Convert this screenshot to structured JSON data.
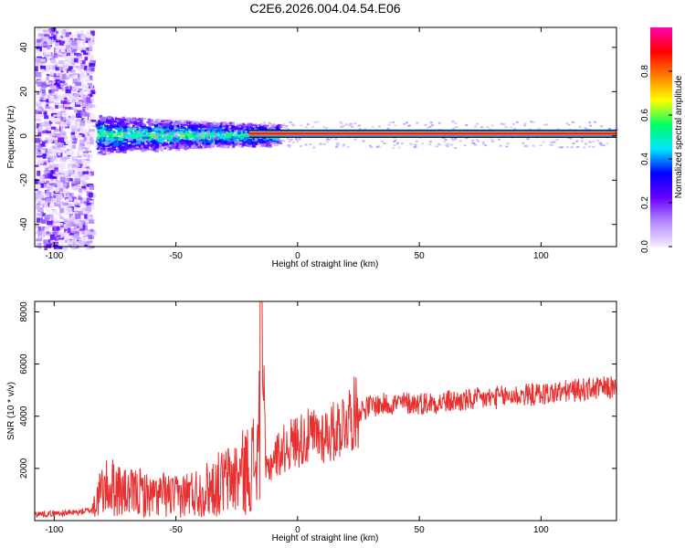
{
  "title": "C2E6.2026.004.04.54.E06",
  "chart_data": [
    {
      "type": "heatmap",
      "xlabel": "Height of straight line (km)",
      "ylabel": "Frequency (Hz)",
      "xlim": [
        -108,
        131
      ],
      "ylim": [
        -50,
        49
      ],
      "xticks": [
        -100,
        -50,
        0,
        50,
        100
      ],
      "yticks": [
        -40,
        -20,
        0,
        20,
        40
      ],
      "colorbar": {
        "label": "Normalized spectral amplitude",
        "range": [
          0,
          1
        ],
        "ticks": [
          0.0,
          0.2,
          0.4,
          0.6,
          0.8
        ],
        "tick_labels": [
          "0.0",
          "0.2",
          "0.4",
          "0.6",
          "0.8"
        ],
        "colors": [
          "#f2eaff",
          "#b48cff",
          "#6a00ff",
          "#0000ff",
          "#00e5ff",
          "#00ff66",
          "#ffff00",
          "#ff7f00",
          "#ff0000",
          "#ff00b0"
        ]
      },
      "features": {
        "noise_region_x": [
          -108,
          -85
        ],
        "signal_center_freq_hz": 1,
        "stable_line_from_x": -20
      }
    },
    {
      "type": "line",
      "xlabel": "Height of straight line (km)",
      "ylabel": "SNR (10 * v/v)",
      "xlim": [
        -108,
        131
      ],
      "ylim": [
        0,
        8400
      ],
      "xticks": [
        -100,
        -50,
        0,
        50,
        100
      ],
      "yticks": [
        2000,
        4000,
        6000,
        8000
      ],
      "series": [
        {
          "color": "#e83030",
          "x": [
            -108,
            -100,
            -90,
            -85,
            -80,
            -75,
            -70,
            -65,
            -60,
            -55,
            -50,
            -45,
            -40,
            -35,
            -30,
            -25,
            -20,
            -16,
            -15,
            -13,
            -10,
            -5,
            0,
            5,
            10,
            15,
            20,
            25,
            30,
            40,
            50,
            60,
            70,
            80,
            90,
            100,
            110,
            120,
            131
          ],
          "y": [
            250,
            270,
            320,
            400,
            1200,
            1300,
            1000,
            1100,
            900,
            1000,
            900,
            1050,
            1100,
            1300,
            1500,
            1700,
            2000,
            2500,
            8400,
            1800,
            2400,
            2800,
            3100,
            3200,
            3300,
            3400,
            3900,
            4200,
            4400,
            4500,
            4500,
            4550,
            4600,
            4700,
            4800,
            4850,
            4950,
            5050,
            5100
          ]
        }
      ]
    }
  ]
}
